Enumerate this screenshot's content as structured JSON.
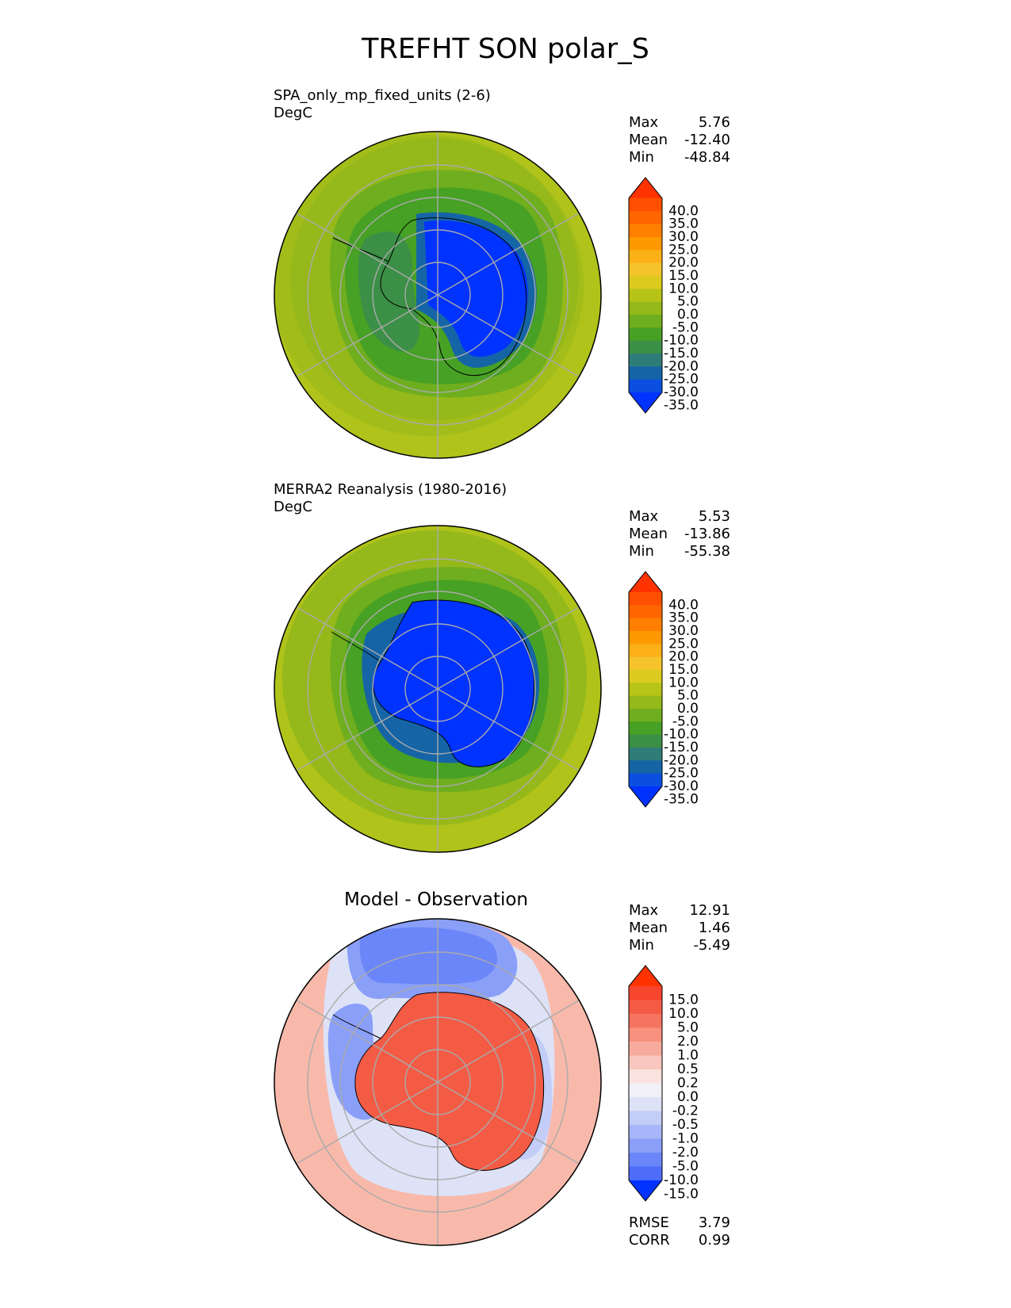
{
  "title": "TREFHT SON polar_S",
  "panels": [
    {
      "label_line1": "SPA_only_mp_fixed_units (2-6)",
      "label_line2": "DegC",
      "stats": {
        "max_label": "Max",
        "max": "5.76",
        "mean_label": "Mean",
        "mean": "-12.40",
        "min_label": "Min",
        "min": "-48.84"
      }
    },
    {
      "label_line1": "MERRA2 Reanalysis (1980-2016)",
      "label_line2": "DegC",
      "stats": {
        "max_label": "Max",
        "max": "5.53",
        "mean_label": "Mean",
        "mean": "-13.86",
        "min_label": "Min",
        "min": "-55.38"
      }
    },
    {
      "title": "Model - Observation",
      "stats": {
        "max_label": "Max",
        "max": "12.91",
        "mean_label": "Mean",
        "mean": "1.46",
        "min_label": "Min",
        "min": "-5.49"
      },
      "rmse_label": "RMSE",
      "rmse": "3.79",
      "corr_label": "CORR",
      "corr": "0.99"
    }
  ],
  "chart_data": [
    {
      "type": "heatmap",
      "projection": "south-polar-stereographic",
      "title": "SPA_only_mp_fixed_units (2-6)",
      "units": "DegC",
      "colorbar_levels": [
        "40.0",
        "35.0",
        "30.0",
        "25.0",
        "20.0",
        "15.0",
        "10.0",
        "5.0",
        "0.0",
        "-5.0",
        "-10.0",
        "-15.0",
        "-20.0",
        "-25.0",
        "-30.0",
        "-35.0"
      ],
      "colorbar_colors": [
        "#ff3300",
        "#ff4f00",
        "#ff6600",
        "#ff7f00",
        "#ff9900",
        "#fbb018",
        "#f5c32c",
        "#dccb1e",
        "#b7c317",
        "#95b91a",
        "#6fae1e",
        "#47a124",
        "#3c8f46",
        "#2e7d78",
        "#1565a6",
        "#0a4fe0",
        "#0033ff"
      ],
      "max": 5.76,
      "mean": -12.4,
      "min": -48.84
    },
    {
      "type": "heatmap",
      "projection": "south-polar-stereographic",
      "title": "MERRA2 Reanalysis (1980-2016)",
      "units": "DegC",
      "colorbar_levels": [
        "40.0",
        "35.0",
        "30.0",
        "25.0",
        "20.0",
        "15.0",
        "10.0",
        "5.0",
        "0.0",
        "-5.0",
        "-10.0",
        "-15.0",
        "-20.0",
        "-25.0",
        "-30.0",
        "-35.0"
      ],
      "colorbar_colors": [
        "#ff3300",
        "#ff4f00",
        "#ff6600",
        "#ff7f00",
        "#ff9900",
        "#fbb018",
        "#f5c32c",
        "#dccb1e",
        "#b7c317",
        "#95b91a",
        "#6fae1e",
        "#47a124",
        "#3c8f46",
        "#2e7d78",
        "#1565a6",
        "#0a4fe0",
        "#0033ff"
      ],
      "max": 5.53,
      "mean": -13.86,
      "min": -55.38
    },
    {
      "type": "heatmap",
      "projection": "south-polar-stereographic",
      "title": "Model - Observation",
      "colorbar_levels": [
        "15.0",
        "10.0",
        "5.0",
        "2.0",
        "1.0",
        "0.5",
        "0.2",
        "0.0",
        "-0.2",
        "-0.5",
        "-1.0",
        "-2.0",
        "-5.0",
        "-10.0",
        "-15.0"
      ],
      "colorbar_colors": [
        "#ff3300",
        "#f7452e",
        "#f45b45",
        "#f5735f",
        "#f7917e",
        "#f8ab9c",
        "#f9c7bd",
        "#fae3de",
        "#f0f0f6",
        "#dde2f7",
        "#c3cdf8",
        "#a7b6f8",
        "#8a9ff8",
        "#6b86f8",
        "#4d6cf9",
        "#0033ff"
      ],
      "max": 12.91,
      "mean": 1.46,
      "min": -5.49,
      "rmse": 3.79,
      "corr": 0.99
    }
  ]
}
